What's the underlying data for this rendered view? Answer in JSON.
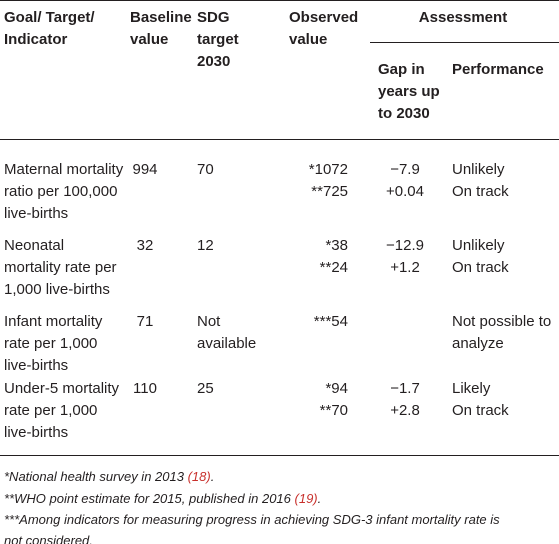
{
  "table": {
    "header": {
      "indicator": [
        "Goal/ Target/",
        "Indicator"
      ],
      "baseline": [
        "Baseline",
        "value"
      ],
      "target": [
        "SDG",
        "target",
        "2030"
      ],
      "observed": [
        "Observed",
        "value"
      ],
      "assessment": "Assessment",
      "gap": [
        "Gap in",
        "years up",
        "to 2030"
      ],
      "performance": "Performance"
    },
    "rows": [
      {
        "indicator": [
          "Maternal mortality",
          "ratio per 100,000",
          "live-births"
        ],
        "baseline": "994",
        "target": [
          "70"
        ],
        "observed": [
          "*1072",
          "**725"
        ],
        "gap": [
          "−7.9",
          "+0.04"
        ],
        "performance": [
          "Unlikely",
          "On track"
        ]
      },
      {
        "indicator": [
          "Neonatal",
          "mortality rate per",
          "1,000 live-births"
        ],
        "baseline": "32",
        "target": [
          "12"
        ],
        "observed": [
          "*38",
          "**24"
        ],
        "gap": [
          "−12.9",
          "+1.2"
        ],
        "performance": [
          "Unlikely",
          "On track"
        ]
      },
      {
        "indicator": [
          "Infant mortality",
          "rate per 1,000",
          "live-births"
        ],
        "baseline": "71",
        "target": [
          "Not",
          "available"
        ],
        "observed": [
          "***54"
        ],
        "gap": [],
        "performance": [
          "Not possible to",
          "analyze"
        ]
      },
      {
        "indicator": [
          "Under-5 mortality",
          "rate per 1,000",
          "live-births"
        ],
        "baseline": "110",
        "target": [
          "25"
        ],
        "observed": [
          "*94",
          "**70"
        ],
        "gap": [
          "−1.7",
          "+2.8"
        ],
        "performance": [
          "Likely",
          "On track"
        ]
      }
    ]
  },
  "footnotes": [
    {
      "text": "*National health survey in 2013 ",
      "ref": "(18)",
      "end": "."
    },
    {
      "text": "**WHO point estimate for 2015, published in 2016 ",
      "ref": "(19)",
      "end": "."
    },
    {
      "lines": [
        "***Among indicators for measuring progress in achieving SDG-3 infant mortality rate is",
        "not considered."
      ]
    }
  ]
}
